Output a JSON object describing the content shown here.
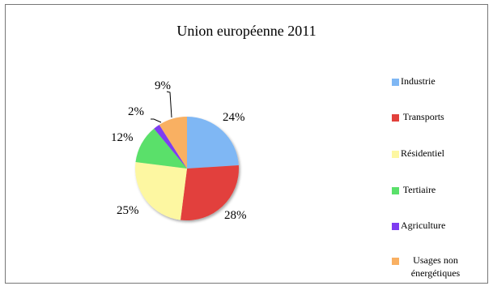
{
  "chart_data": {
    "type": "pie",
    "title": "Union européenne 2011",
    "categories": [
      "Industrie",
      "Transports",
      "Résidentiel",
      "Tertiaire",
      "Agriculture",
      "Usages non énergétiques"
    ],
    "values": [
      24,
      28,
      25,
      12,
      2,
      9
    ],
    "labels": [
      "24%",
      "28%",
      "25%",
      "12%",
      "2%",
      "9%"
    ],
    "colors": [
      "#7fb7f4",
      "#e2413c",
      "#fdf7a1",
      "#5ae06a",
      "#7e3cf1",
      "#f9b062"
    ],
    "legend_position": "right"
  }
}
